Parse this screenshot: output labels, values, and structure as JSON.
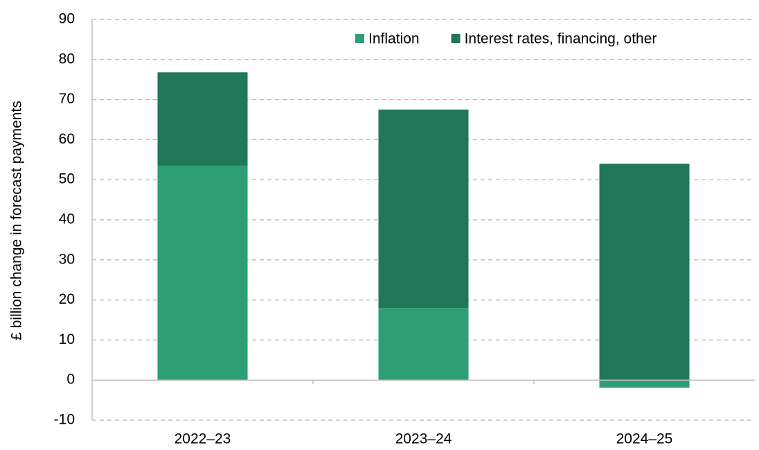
{
  "chart_data": {
    "type": "stacked_bar",
    "y_label": "£ billion change in forecast payments",
    "categories": [
      "2022–23",
      "2023–24",
      "2024–25"
    ],
    "series": [
      {
        "name": "Inflation",
        "color": "#2e9e74",
        "values": [
          53.5,
          18.0,
          -1.9
        ]
      },
      {
        "name": "Interest rates, financing, other",
        "color": "#22765a",
        "values": [
          23.3,
          49.5,
          54.0
        ]
      }
    ],
    "ylim": [
      -10,
      90
    ],
    "yticks": [
      -10,
      0,
      10,
      20,
      30,
      40,
      50,
      60,
      70,
      80,
      90
    ],
    "grid": true,
    "legend": "top-right"
  }
}
